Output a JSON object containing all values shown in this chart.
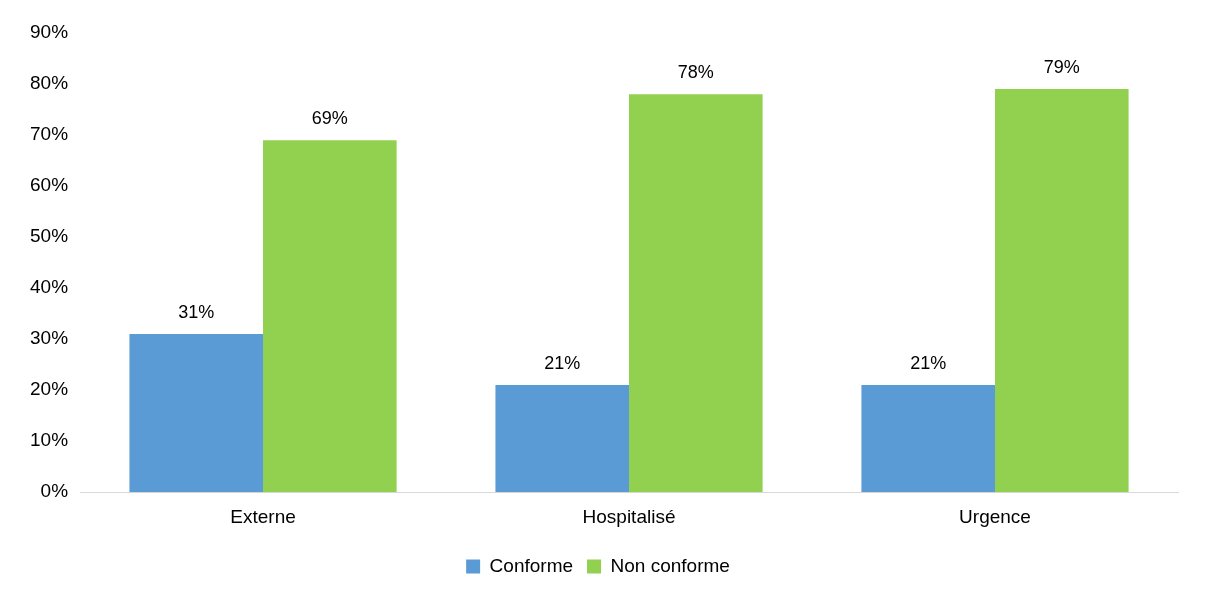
{
  "chart_data": {
    "type": "bar",
    "categories": [
      "Externe",
      "Hospitalisé",
      "Urgence"
    ],
    "series": [
      {
        "name": "Conforme",
        "color": "#5b9bd5",
        "values": [
          31,
          21,
          21
        ],
        "value_labels": [
          "31%",
          "21%",
          "21%"
        ]
      },
      {
        "name": "Non conforme",
        "color": "#92d050",
        "values": [
          69,
          78,
          79
        ],
        "value_labels": [
          "69%",
          "78%",
          "79%"
        ]
      }
    ],
    "ylim": [
      0,
      90
    ],
    "yticks": [
      {
        "value": 0,
        "label": "0%"
      },
      {
        "value": 10,
        "label": "10%"
      },
      {
        "value": 20,
        "label": "20%"
      },
      {
        "value": 30,
        "label": "30%"
      },
      {
        "value": 40,
        "label": "40%"
      },
      {
        "value": 50,
        "label": "50%"
      },
      {
        "value": 60,
        "label": "60%"
      },
      {
        "value": 70,
        "label": "70%"
      },
      {
        "value": 80,
        "label": "80%"
      },
      {
        "value": 90,
        "label": "90%"
      }
    ],
    "grid": false,
    "legend": "bottom"
  }
}
